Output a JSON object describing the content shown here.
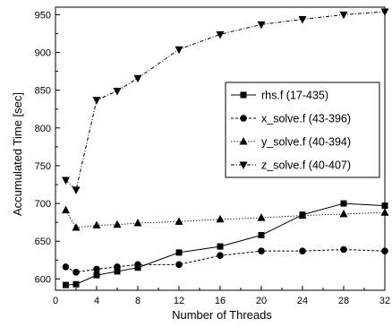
{
  "chart_data": {
    "type": "line",
    "xlabel": "Number of Threads",
    "ylabel": "Accumulated Time [sec]",
    "xlim": [
      0,
      32
    ],
    "ylim": [
      585,
      960
    ],
    "x_ticks": [
      0,
      4,
      8,
      12,
      16,
      20,
      24,
      28,
      32
    ],
    "y_ticks": [
      600,
      650,
      700,
      750,
      800,
      850,
      900,
      950
    ],
    "grid": false,
    "legend_position": "right",
    "series": [
      {
        "name": "rhs.f (17-435)",
        "marker": "square",
        "line_style": "solid",
        "points": [
          [
            1,
            592
          ],
          [
            2,
            593
          ],
          [
            4,
            605
          ],
          [
            6,
            610
          ],
          [
            8,
            615
          ],
          [
            12,
            635
          ],
          [
            16,
            643
          ],
          [
            20,
            658
          ],
          [
            24,
            685
          ],
          [
            28,
            700
          ],
          [
            32,
            697
          ]
        ]
      },
      {
        "name": "x_solve.f (43-396)",
        "marker": "circle",
        "line_style": "dashed",
        "points": [
          [
            1,
            616
          ],
          [
            2,
            609
          ],
          [
            4,
            613
          ],
          [
            6,
            616
          ],
          [
            8,
            619
          ],
          [
            12,
            619
          ],
          [
            16,
            631
          ],
          [
            20,
            637
          ],
          [
            24,
            637
          ],
          [
            28,
            639
          ],
          [
            32,
            637
          ]
        ]
      },
      {
        "name": "y_solve.f (40-394)",
        "marker": "triangle-up",
        "line_style": "dotted",
        "points": [
          [
            1,
            691
          ],
          [
            2,
            668
          ],
          [
            4,
            671
          ],
          [
            6,
            672
          ],
          [
            8,
            674
          ],
          [
            12,
            676
          ],
          [
            16,
            679
          ],
          [
            20,
            681
          ],
          [
            24,
            684
          ],
          [
            28,
            686
          ],
          [
            32,
            688
          ]
        ]
      },
      {
        "name": "z_solve.f (40-407)",
        "marker": "triangle-down",
        "line_style": "dash-dot",
        "points": [
          [
            1,
            731
          ],
          [
            2,
            718
          ],
          [
            4,
            837
          ],
          [
            6,
            849
          ],
          [
            8,
            866
          ],
          [
            12,
            904
          ],
          [
            16,
            924
          ],
          [
            20,
            937
          ],
          [
            24,
            944
          ],
          [
            28,
            950
          ],
          [
            32,
            954
          ]
        ]
      }
    ]
  }
}
